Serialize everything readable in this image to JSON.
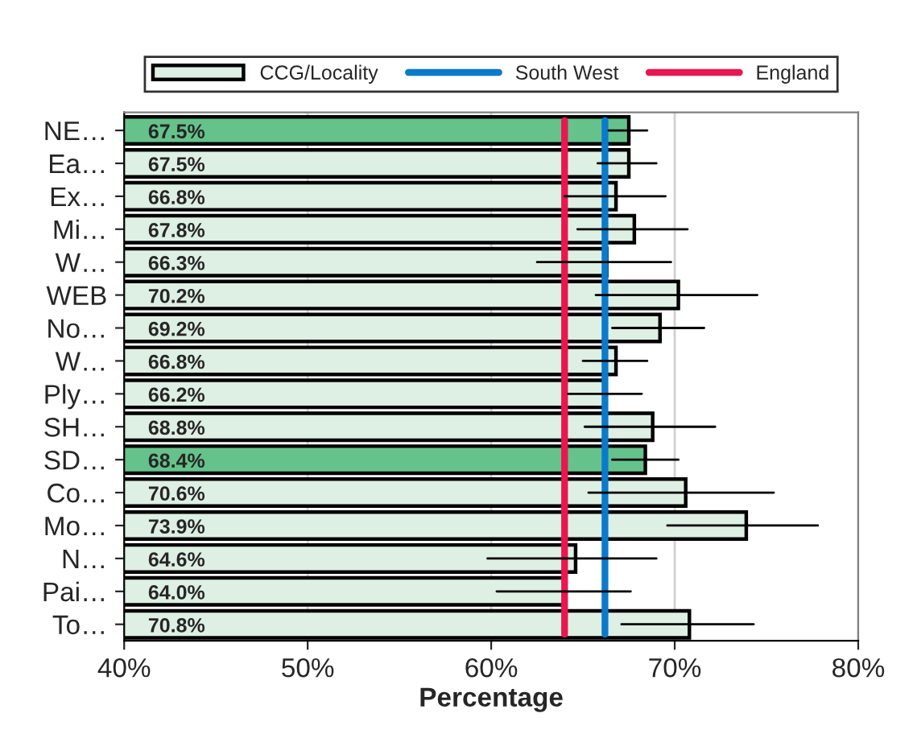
{
  "chart_data": {
    "type": "bar",
    "orientation": "horizontal",
    "xlabel": "Percentage",
    "categories": [
      "NE…",
      "Ea…",
      "Ex…",
      "Mi…",
      "W…",
      "WEB",
      "No…",
      "W…",
      "Ply…",
      "SH…",
      "SD…",
      "Co…",
      "Mo…",
      "N…",
      "Pai…",
      "To…"
    ],
    "series": [
      {
        "name": "CCG/Locality",
        "values": [
          67.5,
          67.5,
          66.8,
          67.8,
          66.3,
          70.2,
          69.2,
          66.8,
          66.2,
          68.8,
          68.4,
          70.6,
          73.9,
          64.6,
          64.0,
          70.8
        ],
        "colors": [
          "#66c28b",
          "#deefe3",
          "#deefe3",
          "#deefe3",
          "#deefe3",
          "#deefe3",
          "#deefe3",
          "#deefe3",
          "#deefe3",
          "#deefe3",
          "#66c28b",
          "#deefe3",
          "#deefe3",
          "#deefe3",
          "#deefe3",
          "#deefe3"
        ],
        "value_labels": [
          "67.5%",
          "67.5%",
          "66.8%",
          "67.8%",
          "66.3%",
          "70.2%",
          "69.2%",
          "66.8%",
          "66.2%",
          "68.8%",
          "68.4%",
          "70.6%",
          "73.9%",
          "64.6%",
          "64.0%",
          "70.8%"
        ],
        "errors": [
          [
            66.4,
            68.5
          ],
          [
            65.8,
            69.0
          ],
          [
            64.0,
            69.5
          ],
          [
            64.7,
            70.7
          ],
          [
            62.5,
            69.8
          ],
          [
            65.7,
            74.5
          ],
          [
            66.6,
            71.6
          ],
          [
            65.0,
            68.5
          ],
          [
            64.2,
            68.2
          ],
          [
            65.1,
            72.2
          ],
          [
            66.6,
            70.2
          ],
          [
            65.3,
            75.4
          ],
          [
            69.6,
            77.8
          ],
          [
            59.8,
            69.0
          ],
          [
            60.3,
            67.6
          ],
          [
            67.1,
            74.3
          ]
        ]
      }
    ],
    "ref_lines": [
      {
        "axis": "x",
        "value": 66.2,
        "label": "South West",
        "color": "#0a7acc"
      },
      {
        "axis": "x",
        "value": 64.0,
        "label": "England",
        "color": "#e8174f"
      }
    ],
    "xlim": [
      40,
      80
    ],
    "xticks": [
      {
        "value": 40,
        "label": "40%"
      },
      {
        "value": 50,
        "label": "50%"
      },
      {
        "value": 60,
        "label": "60%"
      },
      {
        "value": 70,
        "label": "70%"
      },
      {
        "value": 80,
        "label": "80%"
      }
    ],
    "grid": "x",
    "legend": "top"
  }
}
